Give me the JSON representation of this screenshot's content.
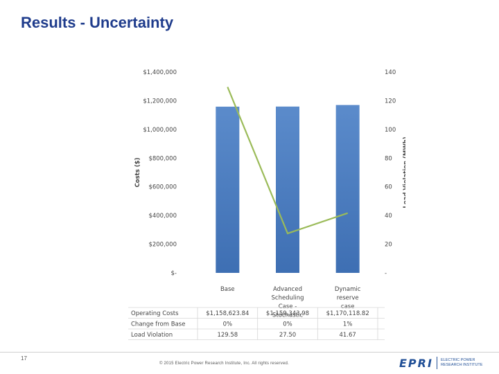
{
  "slide": {
    "title": "Results - Uncertainty",
    "page_number": "17",
    "copyright": "© 2015 Electric Power Research Institute, Inc. All rights reserved.",
    "logo_mark": "EPRI",
    "logo_line1": "ELECTRIC POWER",
    "logo_line2": "RESEARCH INSTITUTE"
  },
  "chart_data": {
    "type": "bar",
    "categories": [
      [
        "Base"
      ],
      [
        "Advanced",
        "Scheduling",
        "Case -",
        "Stochastic"
      ],
      [
        "Dynamic",
        "reserve",
        "case"
      ]
    ],
    "series": [
      {
        "name": "Operating Costs",
        "kind": "bar",
        "axis": "left",
        "color": "#4a7cc0",
        "values": [
          1158623.84,
          1159343.98,
          1170118.82
        ]
      },
      {
        "name": "Load Violation",
        "kind": "line",
        "axis": "right",
        "color": "#9bbb59",
        "values": [
          129.58,
          27.5,
          41.67
        ]
      }
    ],
    "ylabel_left": "Costs ($)",
    "ylabel_right": "Load Violation (MWh)",
    "ylim_left": [
      0,
      1400000
    ],
    "ylim_right": [
      0,
      140
    ],
    "yticks_left": [
      "$-",
      "$200,000",
      "$400,000",
      "$600,000",
      "$800,000",
      "$1,000,000",
      "$1,200,000",
      "$1,400,000"
    ],
    "yticks_right": [
      "-",
      "20",
      "40",
      "60",
      "80",
      "100",
      "120",
      "140"
    ],
    "grid": false,
    "table": {
      "rows": [
        {
          "label": "Operating Costs",
          "swatch": "bar",
          "cells": [
            "$1,158,623.84",
            "$1,159,343.98",
            "$1,170,118.82"
          ]
        },
        {
          "label": "Change from Base",
          "swatch": "none",
          "cells": [
            "0%",
            "0%",
            "1%"
          ]
        },
        {
          "label": "Load Violation",
          "swatch": "line",
          "cells": [
            "129.58",
            "27.50",
            "41.67"
          ]
        }
      ]
    }
  }
}
